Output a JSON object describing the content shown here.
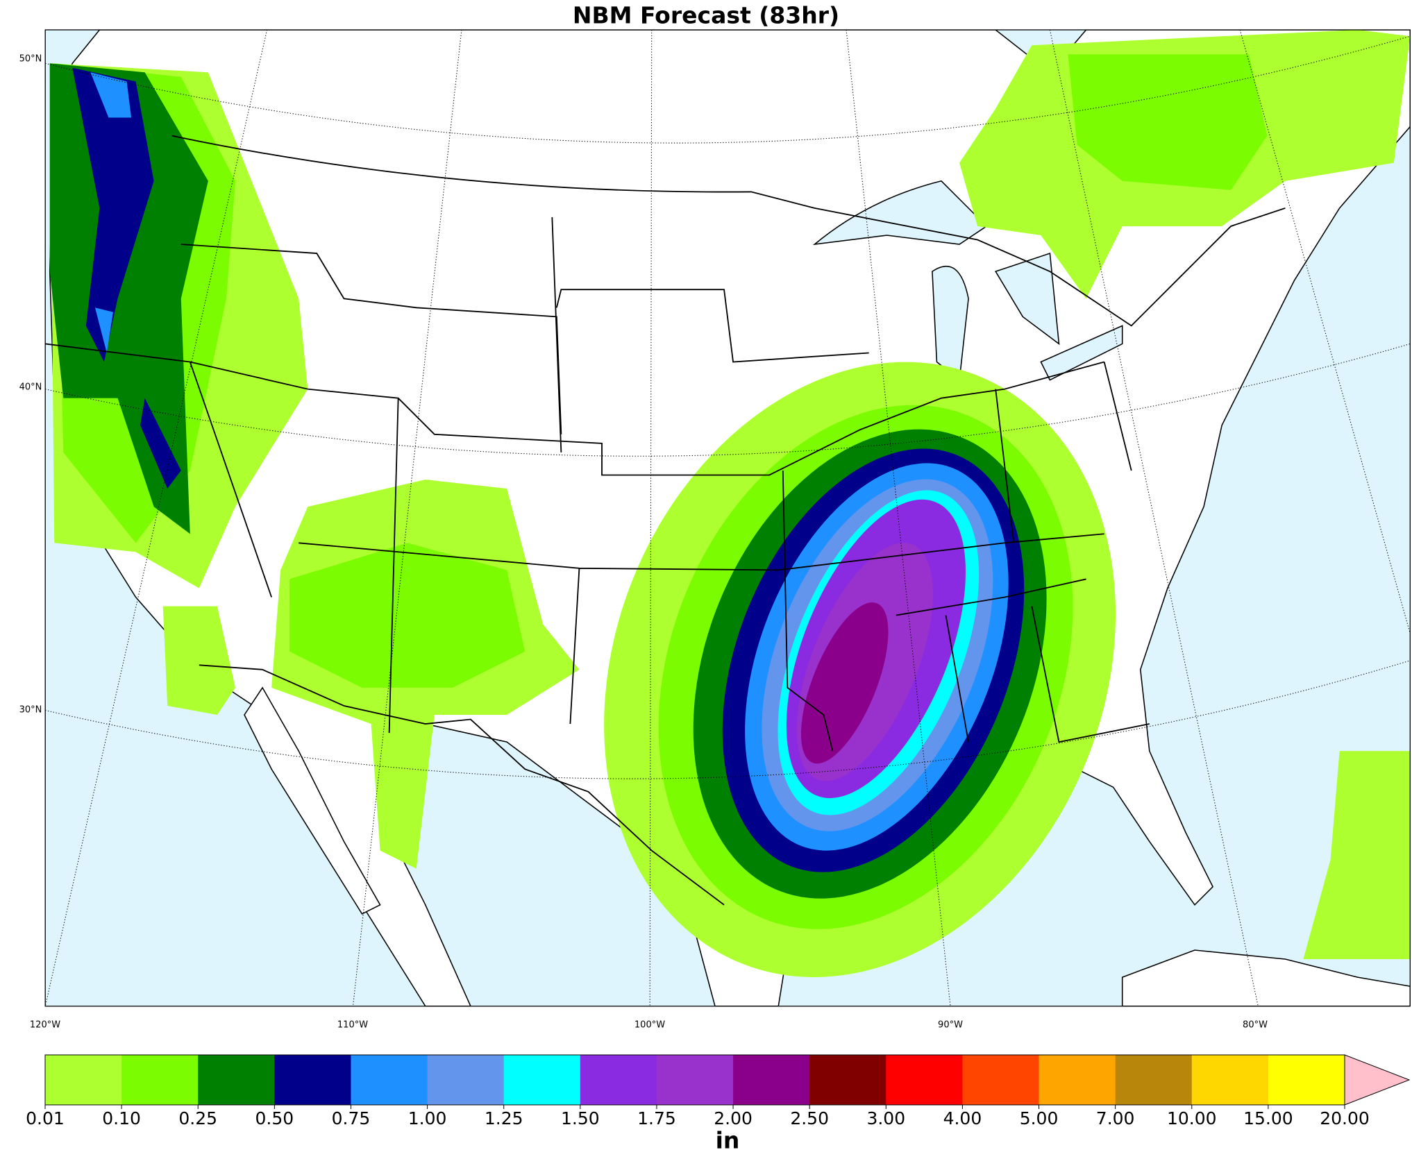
{
  "title": "NBM Forecast (83hr)",
  "map": {
    "lat_labels": [
      "50°N",
      "40°N",
      "30°N"
    ],
    "lon_labels": [
      "120°W",
      "110°W",
      "100°W",
      "90°W",
      "80°W"
    ]
  },
  "colorbar": {
    "label": "in",
    "levels": [
      "0.01",
      "0.10",
      "0.25",
      "0.50",
      "0.75",
      "1.00",
      "1.25",
      "1.50",
      "1.75",
      "2.00",
      "2.50",
      "3.00",
      "4.00",
      "5.00",
      "7.00",
      "10.00",
      "15.00",
      "20.00"
    ],
    "colors": [
      "#adff2f",
      "#7cfc00",
      "#008000",
      "#00008b",
      "#1e90ff",
      "#6495ed",
      "#00ffff",
      "#8a2be2",
      "#9932cc",
      "#8b008b",
      "#800000",
      "#ff0000",
      "#ff4500",
      "#ffa500",
      "#b8860b",
      "#ffd700",
      "#ffff00"
    ],
    "extend_color": "#ffc0cb"
  }
}
